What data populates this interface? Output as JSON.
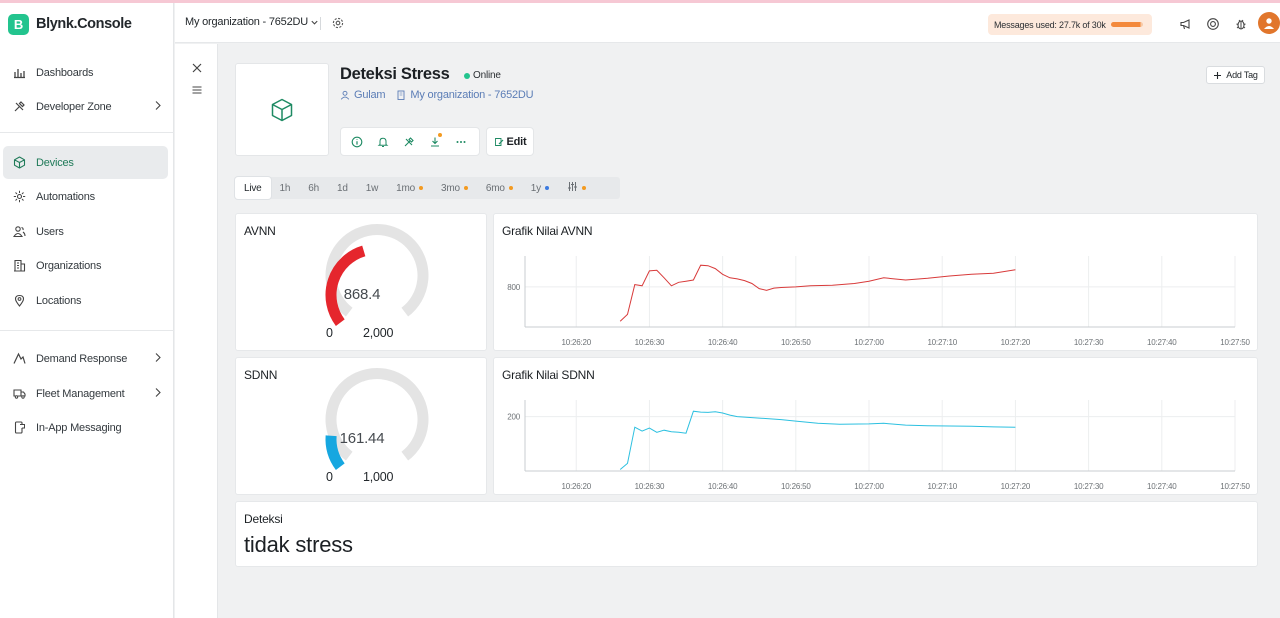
{
  "app": {
    "logo_letter": "B",
    "name": "Blynk.Console"
  },
  "sidebar": {
    "items": [
      {
        "label": "Dashboards",
        "icon": "bar-chart-icon"
      },
      {
        "label": "Developer Zone",
        "icon": "tools-icon",
        "has_children": true
      },
      {
        "label": "Devices",
        "icon": "cube-icon",
        "active": true
      },
      {
        "label": "Automations",
        "icon": "sparkle-icon"
      },
      {
        "label": "Users",
        "icon": "users-icon"
      },
      {
        "label": "Organizations",
        "icon": "building-icon"
      },
      {
        "label": "Locations",
        "icon": "location-pin-icon"
      },
      {
        "label": "Demand Response",
        "icon": "demand-icon",
        "has_children": true
      },
      {
        "label": "Fleet Management",
        "icon": "truck-icon",
        "has_children": true
      },
      {
        "label": "In-App Messaging",
        "icon": "phone-message-icon"
      }
    ]
  },
  "header": {
    "org": "My organization - 7652DU",
    "messages_used": "Messages used: 27.7k of 30k",
    "messages_fraction": 0.923
  },
  "device": {
    "name": "Deteksi Stress",
    "status": "Online",
    "owner": "Gulam",
    "org": "My organization - 7652DU",
    "edit_label": "Edit",
    "add_tag_label": "Add Tag"
  },
  "time_ranges": [
    {
      "label": "Live",
      "active": true
    },
    {
      "label": "1h"
    },
    {
      "label": "6h"
    },
    {
      "label": "1d"
    },
    {
      "label": "1w"
    },
    {
      "label": "1mo",
      "dot": "#f39a20"
    },
    {
      "label": "3mo",
      "dot": "#f39a20"
    },
    {
      "label": "6mo",
      "dot": "#f39a20"
    },
    {
      "label": "1y",
      "dot": "#3c7be0"
    },
    {
      "label": "",
      "icon": "sliders-icon",
      "dot": "#f39a20"
    }
  ],
  "widgets": {
    "avnn_gauge": {
      "title": "AVNN",
      "value": "868.4",
      "min": "0",
      "max": "2,000",
      "fraction": 0.4342,
      "color": "#e5262d"
    },
    "sdnn_gauge": {
      "title": "SDNN",
      "value": "161.44",
      "min": "0",
      "max": "1,000",
      "fraction": 0.1614,
      "color": "#16a7e0"
    },
    "deteksi": {
      "title": "Deteksi",
      "value": "tidak stress"
    }
  },
  "chart_data": [
    {
      "type": "line",
      "title": "Grafik Nilai AVNN",
      "color": "#d83a3a",
      "x_ticks": [
        "10:26:20",
        "10:26:30",
        "10:26:40",
        "10:26:50",
        "10:27:00",
        "10:27:10",
        "10:27:20",
        "10:27:30",
        "10:27:40",
        "10:27:50"
      ],
      "y_ticks": [
        800
      ],
      "xlim": [
        "10:26:13",
        "10:27:50"
      ],
      "ylim": [
        450,
        1070
      ],
      "grid": true,
      "series": [
        {
          "x": [
            "10:26:26",
            "10:26:27",
            "10:26:28",
            "10:26:29",
            "10:26:30",
            "10:26:31",
            "10:26:32",
            "10:26:33",
            "10:26:34",
            "10:26:35",
            "10:26:36",
            "10:26:37",
            "10:26:38",
            "10:26:39",
            "10:26:40",
            "10:26:41",
            "10:26:42",
            "10:26:43",
            "10:26:44",
            "10:26:45",
            "10:26:46",
            "10:26:47",
            "10:26:48",
            "10:26:50",
            "10:26:52",
            "10:26:55",
            "10:26:58",
            "10:27:00",
            "10:27:02",
            "10:27:05",
            "10:27:08",
            "10:27:11",
            "10:27:14",
            "10:27:17",
            "10:27:20"
          ],
          "y": [
            500,
            560,
            820,
            810,
            940,
            945,
            880,
            810,
            840,
            850,
            860,
            990,
            985,
            960,
            910,
            880,
            870,
            855,
            830,
            785,
            770,
            790,
            795,
            800,
            810,
            815,
            830,
            850,
            880,
            860,
            875,
            895,
            910,
            920,
            950
          ]
        }
      ]
    },
    {
      "type": "line",
      "title": "Grafik Nilai SDNN",
      "color": "#2cc0e0",
      "x_ticks": [
        "10:26:20",
        "10:26:30",
        "10:26:40",
        "10:26:50",
        "10:27:00",
        "10:27:10",
        "10:27:20",
        "10:27:30",
        "10:27:40",
        "10:27:50"
      ],
      "y_ticks": [
        200
      ],
      "xlim": [
        "10:26:13",
        "10:27:50"
      ],
      "ylim": [
        20,
        255
      ],
      "grid": true,
      "series": [
        {
          "x": [
            "10:26:26",
            "10:26:27",
            "10:26:28",
            "10:26:29",
            "10:26:30",
            "10:26:31",
            "10:26:32",
            "10:26:33",
            "10:26:34",
            "10:26:35",
            "10:26:36",
            "10:26:37",
            "10:26:38",
            "10:26:39",
            "10:26:40",
            "10:26:41",
            "10:26:42",
            "10:26:45",
            "10:26:48",
            "10:26:50",
            "10:26:53",
            "10:26:56",
            "10:27:00",
            "10:27:02",
            "10:27:05",
            "10:27:08",
            "10:27:11",
            "10:27:14",
            "10:27:17",
            "10:27:20"
          ],
          "y": [
            25,
            45,
            165,
            152,
            162,
            148,
            155,
            150,
            148,
            145,
            218,
            215,
            214,
            216,
            212,
            205,
            200,
            195,
            190,
            185,
            178,
            175,
            176,
            178,
            172,
            170,
            169,
            168,
            166,
            165
          ]
        }
      ]
    }
  ]
}
